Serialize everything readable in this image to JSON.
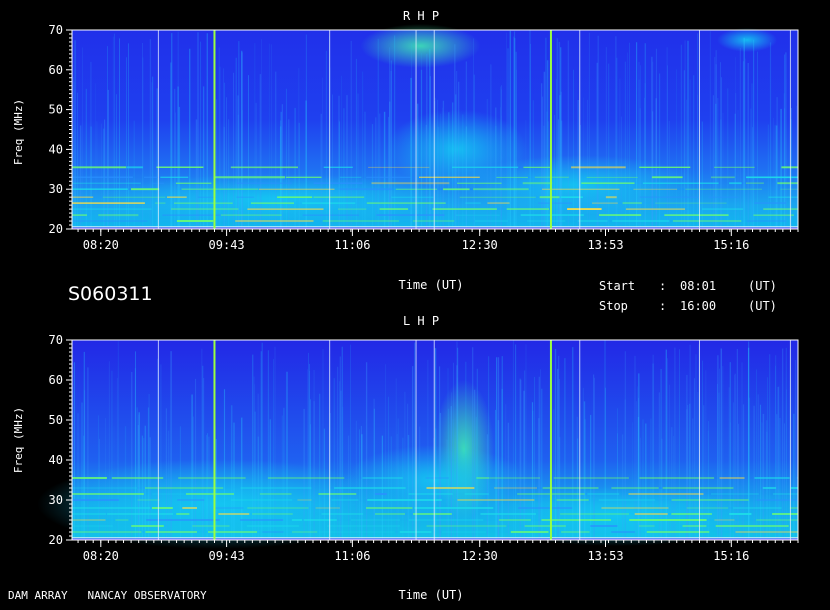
{
  "session_id": "S060311",
  "footer": {
    "observatory": "DAM ARRAY   NANCAY OBSERVATORY"
  },
  "info": {
    "start_label": "Start",
    "start_value": "08:01",
    "start_unit": "(UT)",
    "stop_label": "Stop",
    "stop_value": "16:00",
    "stop_unit": "(UT)",
    "separator": ":"
  },
  "colors": {
    "background": "#000000",
    "text": "#ffffff",
    "low": "#1f25e6",
    "mid": "#12c4f0",
    "high": "#7dff60",
    "peak": "#ffe040"
  },
  "chart_data": [
    {
      "type": "heatmap",
      "title": "R H P",
      "xlabel": "Time (UT)",
      "ylabel": "Freq (MHz)",
      "x_ticks": [
        "08:20",
        "09:43",
        "11:06",
        "12:30",
        "13:53",
        "15:16"
      ],
      "y_ticks": [
        20,
        30,
        40,
        50,
        60,
        70
      ],
      "ylim": [
        20,
        70
      ],
      "xlim": [
        "08:01",
        "16:00"
      ]
    },
    {
      "type": "heatmap",
      "title": "L H P",
      "xlabel": "Time (UT)",
      "ylabel": "Freq (MHz)",
      "x_ticks": [
        "08:20",
        "09:43",
        "11:06",
        "12:30",
        "13:53",
        "15:16"
      ],
      "y_ticks": [
        20,
        30,
        40,
        50,
        60,
        70
      ],
      "ylim": [
        20,
        70
      ],
      "xlim": [
        "08:01",
        "16:00"
      ]
    }
  ]
}
